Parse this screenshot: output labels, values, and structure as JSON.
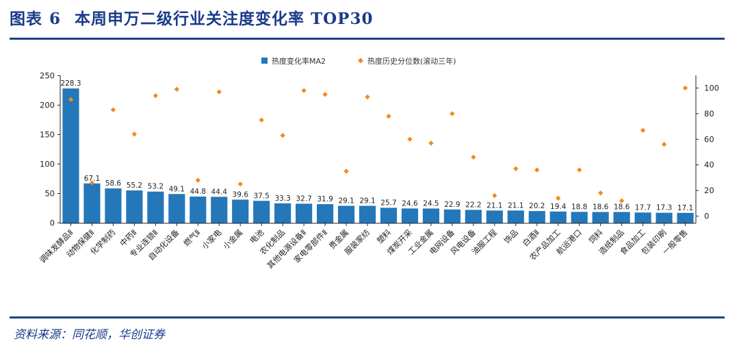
{
  "figure": {
    "label": "图表",
    "number": "6",
    "title": "本周申万二级行业关注度变化率 TOP30",
    "source": "资料来源：同花顺，华创证券"
  },
  "chart_data": {
    "type": "bar",
    "categories": [
      "调味发酵品Ⅱ",
      "动物保健Ⅱ",
      "化学制药",
      "中药Ⅱ",
      "专业连锁Ⅱ",
      "自动化设备",
      "燃气Ⅱ",
      "小家电",
      "小金属",
      "电池",
      "农化制品",
      "其他电源设备Ⅱ",
      "家电零部件Ⅱ",
      "贵金属",
      "服装家纺",
      "塑料",
      "煤炭开采",
      "工业金属",
      "电网设备",
      "风电设备",
      "油服工程",
      "饰品",
      "白酒Ⅱ",
      "农产品加工",
      "航运港口",
      "饲料",
      "造纸制品",
      "食品加工",
      "包装印刷",
      "一般零售"
    ],
    "series": [
      {
        "name": "热度变化率MA2",
        "axis": "left",
        "color": "#2477b9",
        "values": [
          228.3,
          67.1,
          58.6,
          55.2,
          53.2,
          49.1,
          44.8,
          44.4,
          39.6,
          37.5,
          33.3,
          32.7,
          31.9,
          29.1,
          29.1,
          25.7,
          24.6,
          24.5,
          22.9,
          22.2,
          21.1,
          21.1,
          20.2,
          19.4,
          18.8,
          18.6,
          18.6,
          17.7,
          17.3,
          17.1
        ]
      },
      {
        "name": "热度历史分位数(滚动三年)",
        "axis": "right",
        "color": "#f28a1c",
        "values": [
          91,
          26,
          83,
          64,
          94,
          99,
          28,
          97,
          25,
          75,
          63,
          98,
          95,
          35,
          93,
          78,
          60,
          57,
          80,
          46,
          16,
          37,
          36,
          14,
          36,
          18,
          12,
          67,
          56,
          100
        ]
      }
    ],
    "left_axis": {
      "ylim": [
        0,
        250
      ],
      "ticks": [
        0,
        50,
        100,
        150,
        200,
        250
      ]
    },
    "right_axis": {
      "ylim": [
        0,
        110
      ],
      "ticks": [
        0,
        20,
        40,
        60,
        80,
        100
      ]
    },
    "legend_position": "top-center"
  }
}
